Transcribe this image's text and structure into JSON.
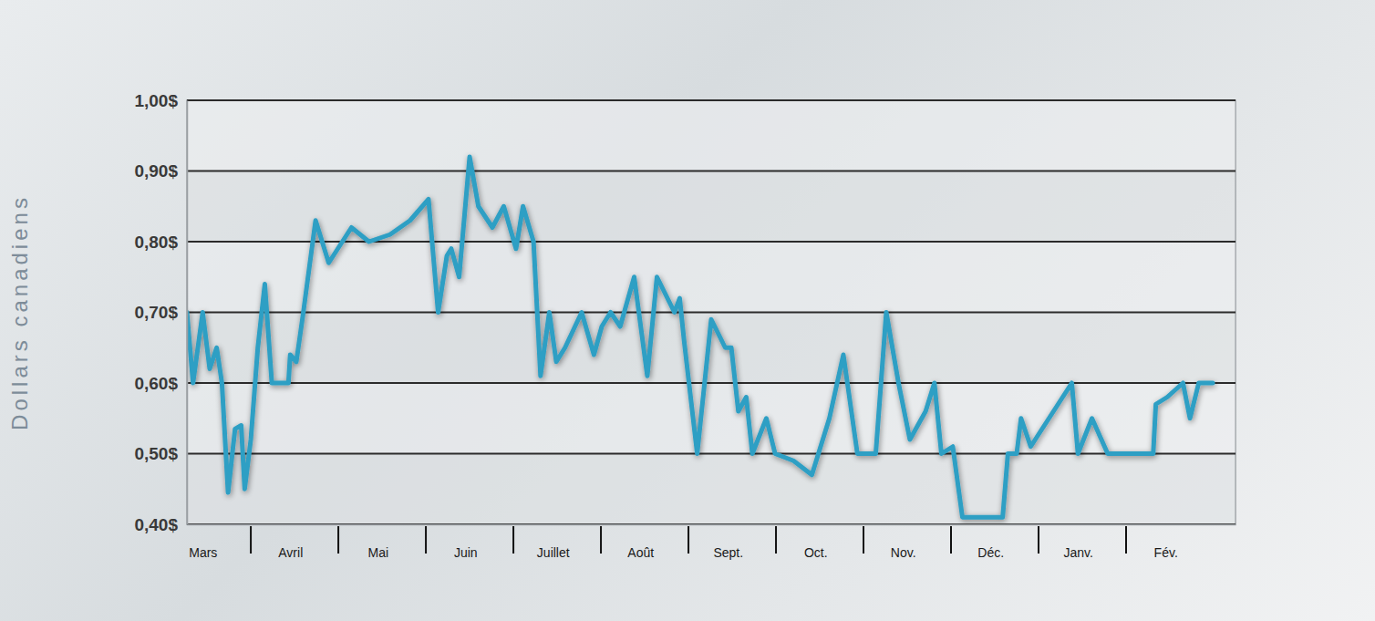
{
  "chart_data": {
    "type": "line",
    "y_label": "Dollars canadiens",
    "color": "#2e9fc4",
    "grid": true,
    "x": [
      0.27,
      0.34,
      0.45,
      0.53,
      0.61,
      0.67,
      0.74,
      0.82,
      0.89,
      0.93,
      1.0,
      1.08,
      1.16,
      1.24,
      1.43,
      1.45,
      1.52,
      1.6,
      1.74,
      1.89,
      2.15,
      2.35,
      2.59,
      2.82,
      3.03,
      3.14,
      3.24,
      3.29,
      3.38,
      3.5,
      3.6,
      3.76,
      3.89,
      4.03,
      4.11,
      4.23,
      4.31,
      4.41,
      4.49,
      4.59,
      4.78,
      4.92,
      5.01,
      5.11,
      5.22,
      5.38,
      5.53,
      5.64,
      5.84,
      5.9,
      5.95,
      6.1,
      6.26,
      6.42,
      6.49,
      6.57,
      6.66,
      6.73,
      6.89,
      6.99,
      7.2,
      7.41,
      7.61,
      7.77,
      7.93,
      8.14,
      8.26,
      8.4,
      8.53,
      8.71,
      8.81,
      8.89,
      9.02,
      9.13,
      9.28,
      9.59,
      9.65,
      9.75,
      9.8,
      9.91,
      10.38,
      10.45,
      10.61,
      10.79,
      11.31,
      11.34,
      11.47,
      11.65,
      11.73,
      11.83,
      11.99
    ],
    "values": [
      0.7,
      0.6,
      0.7,
      0.62,
      0.65,
      0.6,
      0.445,
      0.535,
      0.54,
      0.45,
      0.52,
      0.65,
      0.74,
      0.6,
      0.6,
      0.64,
      0.63,
      0.7,
      0.83,
      0.77,
      0.82,
      0.8,
      0.81,
      0.83,
      0.86,
      0.7,
      0.78,
      0.79,
      0.75,
      0.92,
      0.85,
      0.82,
      0.85,
      0.79,
      0.85,
      0.8,
      0.61,
      0.7,
      0.63,
      0.65,
      0.7,
      0.64,
      0.68,
      0.7,
      0.68,
      0.75,
      0.61,
      0.75,
      0.7,
      0.72,
      0.66,
      0.5,
      0.69,
      0.65,
      0.65,
      0.56,
      0.58,
      0.5,
      0.55,
      0.5,
      0.49,
      0.47,
      0.55,
      0.64,
      0.5,
      0.5,
      0.7,
      0.6,
      0.52,
      0.56,
      0.6,
      0.5,
      0.51,
      0.41,
      0.41,
      0.41,
      0.5,
      0.5,
      0.55,
      0.51,
      0.6,
      0.5,
      0.55,
      0.5,
      0.5,
      0.57,
      0.58,
      0.6,
      0.55,
      0.6,
      0.6
    ],
    "xlim": [
      0.27,
      12.25
    ],
    "xticks": [
      {
        "value": 0.45,
        "label": "Mars"
      },
      {
        "value": 1.45,
        "label": "Avril"
      },
      {
        "value": 2.45,
        "label": "Mai"
      },
      {
        "value": 3.45,
        "label": "Juin"
      },
      {
        "value": 4.45,
        "label": "Juillet"
      },
      {
        "value": 5.45,
        "label": "Août"
      },
      {
        "value": 6.45,
        "label": "Sept."
      },
      {
        "value": 7.45,
        "label": "Oct."
      },
      {
        "value": 8.45,
        "label": "Nov."
      },
      {
        "value": 9.45,
        "label": "Déc."
      },
      {
        "value": 10.45,
        "label": "Janv."
      },
      {
        "value": 11.45,
        "label": "Fév."
      }
    ],
    "ylim": [
      0.4,
      1.0
    ],
    "yticks": [
      {
        "value": 0.4,
        "label": "0,40$"
      },
      {
        "value": 0.5,
        "label": "0,50$"
      },
      {
        "value": 0.6,
        "label": "0,60$"
      },
      {
        "value": 0.7,
        "label": "0,70$"
      },
      {
        "value": 0.8,
        "label": "0,80$"
      },
      {
        "value": 0.9,
        "label": "0,90$"
      },
      {
        "value": 1.0,
        "label": "1,00$"
      }
    ]
  }
}
